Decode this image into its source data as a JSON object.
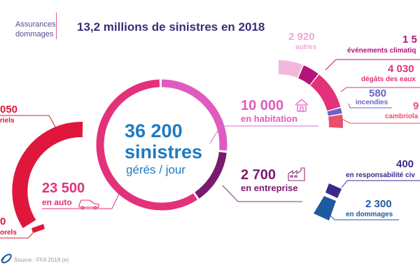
{
  "header": {
    "category_line1": "Assurances",
    "category_line2": "dommages",
    "title": "13,2 millions de sinistres en 2018"
  },
  "center": {
    "value": "36 200",
    "word": "sinistres",
    "sub": "gérés / jour"
  },
  "main_ring": [
    {
      "key": "habitation",
      "value": "10 000",
      "label": "en habitation",
      "icon": "house-icon",
      "color": "#e05bbf"
    },
    {
      "key": "entreprise",
      "value": "2 700",
      "label": "en entreprise",
      "icon": "factory-icon",
      "color": "#7a1a6e"
    },
    {
      "key": "auto",
      "value": "23 500",
      "label": "en auto",
      "icon": "car-icon",
      "color": "#e3327a"
    }
  ],
  "habitation_breakdown": [
    {
      "value": "2 920",
      "label": "autres",
      "color": "#f2b8dc"
    },
    {
      "value": "1 5",
      "label": "événements climatiq",
      "color": "#b5127a"
    },
    {
      "value": "4 030",
      "label": "dégâts des eaux",
      "color": "#e3327a"
    },
    {
      "value": "580",
      "label": "incendies",
      "color": "#6a63c8"
    },
    {
      "value": "9",
      "label": "cambriola",
      "color": "#e8506a"
    }
  ],
  "auto_breakdown": [
    {
      "value": "050",
      "label": "riels",
      "color": "#e0173c"
    },
    {
      "value": "0",
      "label": "orels",
      "color": "#e0173c"
    }
  ],
  "entreprise_breakdown": [
    {
      "value": "400",
      "label": "en responsabilité civ",
      "color": "#3b2a8c"
    },
    {
      "value": "2 300",
      "label": "en dommages",
      "color": "#1e5aa0"
    }
  ],
  "footer": {
    "source": "Source : FFA 2018 (e)"
  }
}
